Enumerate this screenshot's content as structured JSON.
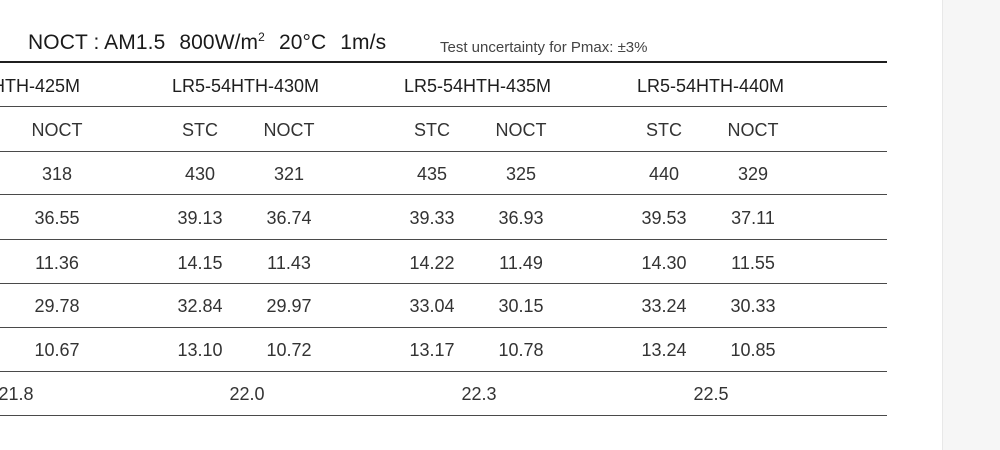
{
  "header": {
    "noct_prefix": "NOCT : AM1.5",
    "noct_irr_value": "800W/m",
    "noct_irr_sup": "2",
    "noct_temp": "20°C",
    "noct_wind": "1m/s",
    "uncertainty": "Test uncertainty for Pmax: ±3%"
  },
  "models": [
    "HTH-425M",
    "LR5-54HTH-430M",
    "LR5-54HTH-435M",
    "LR5-54HTH-440M"
  ],
  "col_headers": [
    "NOCT",
    "STC",
    "NOCT",
    "STC",
    "NOCT",
    "STC",
    "NOCT"
  ],
  "rows": [
    [
      "318",
      "430",
      "321",
      "435",
      "325",
      "440",
      "329"
    ],
    [
      "36.55",
      "39.13",
      "36.74",
      "39.33",
      "36.93",
      "39.53",
      "37.11"
    ],
    [
      "11.36",
      "14.15",
      "11.43",
      "14.22",
      "11.49",
      "14.30",
      "11.55"
    ],
    [
      "29.78",
      "32.84",
      "29.97",
      "33.04",
      "30.15",
      "33.24",
      "30.33"
    ],
    [
      "10.67",
      "13.10",
      "10.72",
      "13.17",
      "10.78",
      "13.24",
      "10.85"
    ]
  ],
  "efficiency": [
    "21.8",
    "22.0",
    "22.3",
    "22.5"
  ]
}
